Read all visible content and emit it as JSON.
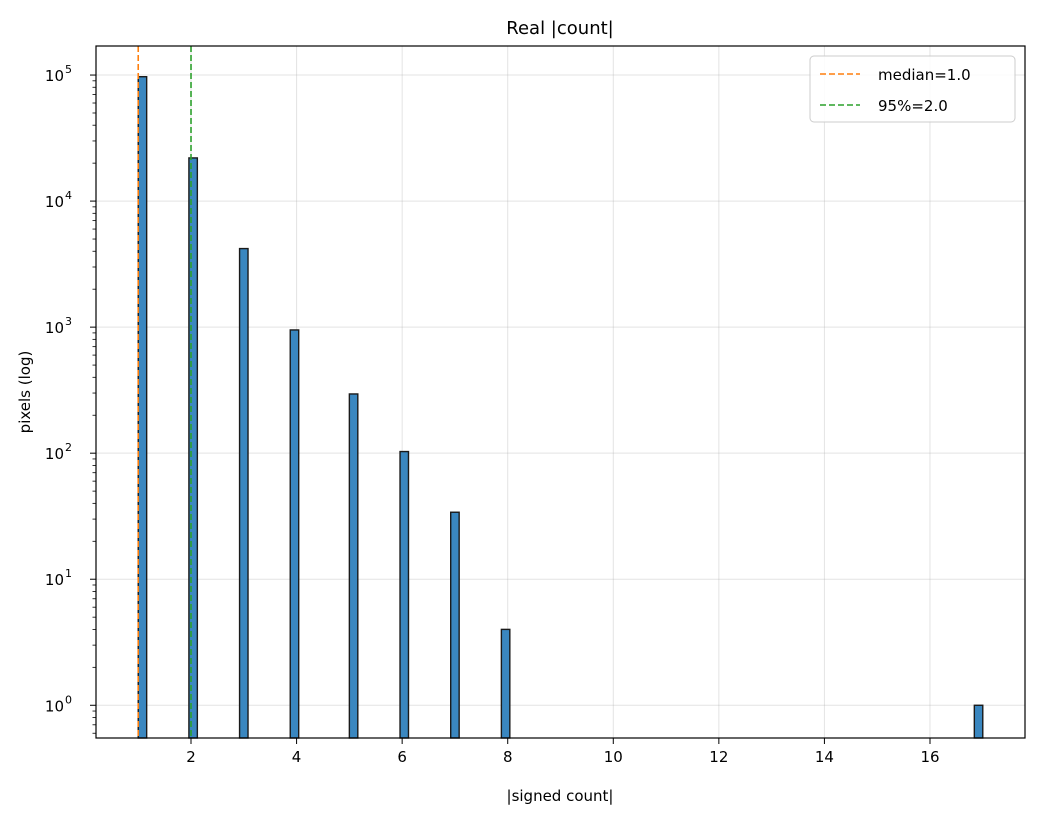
{
  "chart_data": {
    "type": "bar",
    "title": "Real |count|",
    "xlabel": "|signed count|",
    "ylabel": "pixels (log)",
    "yscale": "log",
    "xlim": [
      0.2,
      17.8
    ],
    "ylim": [
      0.55,
      170000
    ],
    "grid": true,
    "legend_position": "top-right",
    "bar_color": "#3a87c0",
    "bar_edge_color": "#1a1a1a",
    "bins": [
      {
        "x0": 1.0,
        "x1": 1.16,
        "value": 97000
      },
      {
        "x0": 1.96,
        "x1": 2.12,
        "value": 22000
      },
      {
        "x0": 2.92,
        "x1": 3.08,
        "value": 4200
      },
      {
        "x0": 3.88,
        "x1": 4.04,
        "value": 950
      },
      {
        "x0": 5.0,
        "x1": 5.16,
        "value": 295
      },
      {
        "x0": 5.96,
        "x1": 6.12,
        "value": 103
      },
      {
        "x0": 6.92,
        "x1": 7.08,
        "value": 34
      },
      {
        "x0": 7.88,
        "x1": 8.04,
        "value": 4
      },
      {
        "x0": 16.84,
        "x1": 17.0,
        "value": 1
      }
    ],
    "x_ticks": [
      2,
      4,
      6,
      8,
      10,
      12,
      14,
      16
    ],
    "y_ticks": [
      {
        "value": 1,
        "mantissa": "10",
        "exp": "0"
      },
      {
        "value": 10,
        "mantissa": "10",
        "exp": "1"
      },
      {
        "value": 100,
        "mantissa": "10",
        "exp": "2"
      },
      {
        "value": 1000,
        "mantissa": "10",
        "exp": "3"
      },
      {
        "value": 10000,
        "mantissa": "10",
        "exp": "4"
      },
      {
        "value": 100000,
        "mantissa": "10",
        "exp": "5"
      }
    ],
    "reference_lines": [
      {
        "name": "median=1.0",
        "x": 1.0,
        "color": "#ff7f0e"
      },
      {
        "name": "95%=2.0",
        "x": 2.0,
        "color": "#2ca02c"
      }
    ]
  }
}
